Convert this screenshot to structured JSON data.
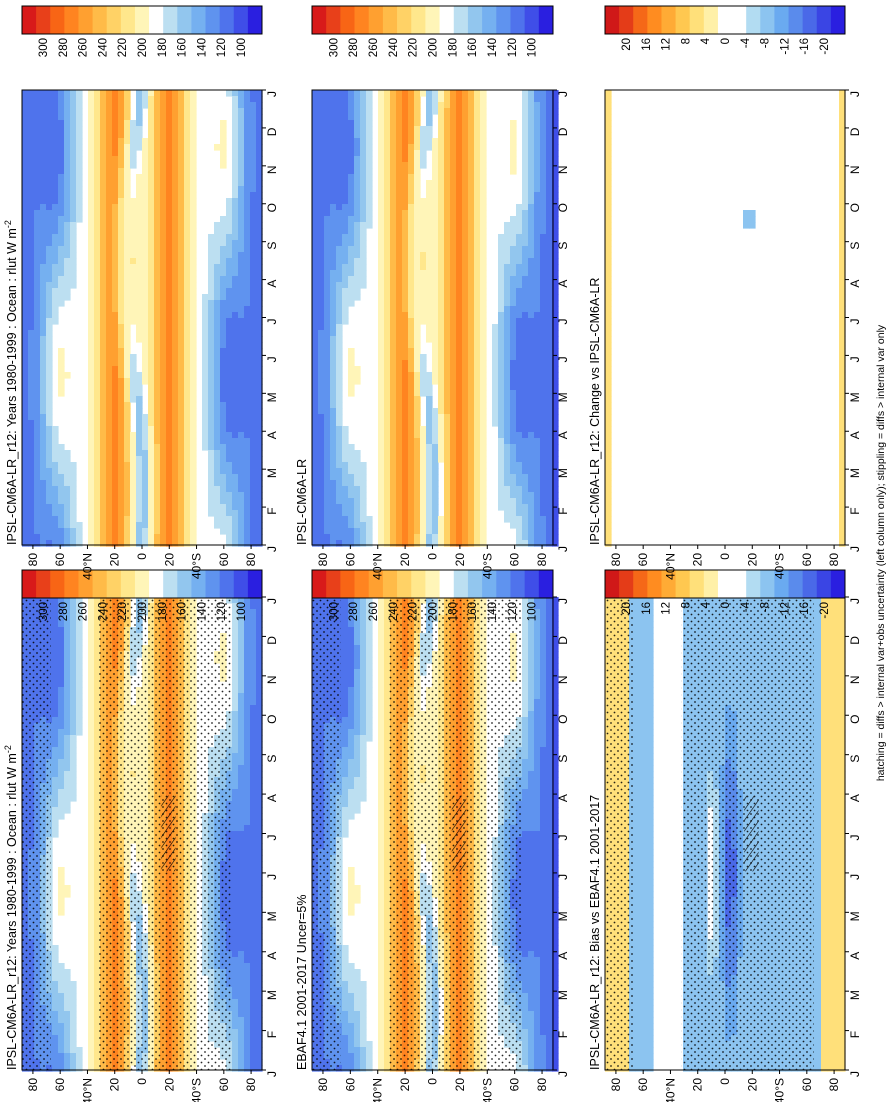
{
  "figure": {
    "footnote": "hatching = diffs > internal var+obs uncertainty (left column only); stippling = diffs > internal var only",
    "colors": {
      "abs_palette": [
        "#2a1fe0",
        "#3f4ee8",
        "#4f73ec",
        "#5f93ef",
        "#75b0f0",
        "#92c6ee",
        "#bcdff1",
        "#ffffff",
        "#fff5b8",
        "#ffe78c",
        "#ffd266",
        "#ffbb48",
        "#ffa030",
        "#ff8420",
        "#f86515",
        "#e8401a",
        "#d81a1a"
      ],
      "diff_palette": [
        "#2a1fe0",
        "#3a45e4",
        "#4a69e8",
        "#5a8bec",
        "#6aaaf0",
        "#8cc4f0",
        "#b2dcf2",
        "#ffffff",
        "#ffffff",
        "#fff0a8",
        "#ffe07a",
        "#ffc850",
        "#ffab35",
        "#ff8c20",
        "#f56818",
        "#e43c18",
        "#d01818"
      ]
    }
  },
  "panels": {
    "model_left": {
      "title": "IPSL-CM6A-LR_r12: Years 1980-1999 : Ocean : rlut W m",
      "sup": "-2",
      "kind": "abs",
      "hatch": true,
      "stipple": "dense",
      "colorbar_ticks": [
        "300",
        "280",
        "260",
        "240",
        "220",
        "200",
        "180",
        "160",
        "140",
        "120",
        "100"
      ]
    },
    "model_right": {
      "title": "IPSL-CM6A-LR_r12: Years 1980-1999 : Ocean : rlut W m",
      "sup": "-2",
      "kind": "abs",
      "hatch": false,
      "stipple": "sparse",
      "colorbar_ticks": [
        "300",
        "280",
        "260",
        "240",
        "220",
        "200",
        "180",
        "160",
        "140",
        "120",
        "100"
      ]
    },
    "obs_left": {
      "title": "EBAF4.1 2001-2017 Uncer=5%",
      "sup": "",
      "kind": "abs",
      "hatch": true,
      "stipple": "dense",
      "colorbar_ticks": [
        "300",
        "280",
        "260",
        "240",
        "220",
        "200",
        "180",
        "160",
        "140",
        "120",
        "100"
      ]
    },
    "obs_right": {
      "title": "IPSL-CM6A-LR",
      "sup": "",
      "kind": "abs",
      "hatch": false,
      "stipple": "sparse",
      "colorbar_ticks": [
        "300",
        "280",
        "260",
        "240",
        "220",
        "200",
        "180",
        "160",
        "140",
        "120",
        "100"
      ]
    },
    "bias_left": {
      "title": "IPSL-CM6A-LR_r12: Bias vs EBAF4.1 2001-2017",
      "sup": "",
      "kind": "bias",
      "hatch": true,
      "stipple": "dense",
      "colorbar_ticks": [
        "20",
        "16",
        "12",
        "8",
        "4",
        "0",
        "-4",
        "-8",
        "-12",
        "-16",
        "-20"
      ]
    },
    "change_right": {
      "title": "IPSL-CM6A-LR_r12: Change vs IPSL-CM6A-LR",
      "sup": "",
      "kind": "change",
      "hatch": false,
      "stipple": "sparse",
      "colorbar_ticks": [
        "20",
        "16",
        "12",
        "8",
        "4",
        "0",
        "-4",
        "-8",
        "-12",
        "-16",
        "-20"
      ]
    }
  },
  "chart_data": [
    {
      "type": "heatmap",
      "title": "IPSL-CM6A-LR_r12: Years 1980-1999 : Ocean : rlut W m-2",
      "x": [
        "J",
        "F",
        "M",
        "A",
        "M",
        "J",
        "J",
        "A",
        "S",
        "O",
        "N",
        "D",
        "J"
      ],
      "y": [
        "80",
        "60",
        "40°N",
        "20",
        "0",
        "20",
        "40°S",
        "60",
        "80"
      ],
      "xlabel": "",
      "ylabel": "",
      "colorbar_range": [
        100,
        300
      ],
      "hatching": true,
      "stippling": true
    },
    {
      "type": "heatmap",
      "title": "IPSL-CM6A-LR_r12: Years 1980-1999 : Ocean : rlut W m-2",
      "x": [
        "J",
        "F",
        "M",
        "A",
        "M",
        "J",
        "J",
        "A",
        "S",
        "O",
        "N",
        "D",
        "J"
      ],
      "y": [
        "80",
        "60",
        "40°N",
        "20",
        "0",
        "20",
        "40°S",
        "60",
        "80"
      ],
      "xlabel": "",
      "ylabel": "",
      "colorbar_range": [
        100,
        300
      ],
      "hatching": false,
      "stippling": true
    },
    {
      "type": "heatmap",
      "title": "EBAF4.1 2001-2017 Uncer=5%",
      "x": [
        "J",
        "F",
        "M",
        "A",
        "M",
        "J",
        "J",
        "A",
        "S",
        "O",
        "N",
        "D",
        "J"
      ],
      "y": [
        "80",
        "60",
        "40°N",
        "20",
        "0",
        "20",
        "40°S",
        "60",
        "80"
      ],
      "xlabel": "",
      "ylabel": "",
      "colorbar_range": [
        100,
        300
      ],
      "hatching": true,
      "stippling": true
    },
    {
      "type": "heatmap",
      "title": "IPSL-CM6A-LR",
      "x": [
        "J",
        "F",
        "M",
        "A",
        "M",
        "J",
        "J",
        "A",
        "S",
        "O",
        "N",
        "D",
        "J"
      ],
      "y": [
        "80",
        "60",
        "40°N",
        "20",
        "0",
        "20",
        "40°S",
        "60",
        "80"
      ],
      "xlabel": "",
      "ylabel": "",
      "colorbar_range": [
        100,
        300
      ],
      "hatching": false,
      "stippling": true
    },
    {
      "type": "heatmap",
      "title": "IPSL-CM6A-LR_r12: Bias vs EBAF4.1 2001-2017",
      "x": [
        "J",
        "F",
        "M",
        "A",
        "M",
        "J",
        "J",
        "A",
        "S",
        "O",
        "N",
        "D",
        "J"
      ],
      "y": [
        "80",
        "60",
        "40°N",
        "20",
        "0",
        "20",
        "40°S",
        "60",
        "80"
      ],
      "xlabel": "",
      "ylabel": "",
      "colorbar_range": [
        -20,
        20
      ],
      "hatching": true,
      "stippling": true
    },
    {
      "type": "heatmap",
      "title": "IPSL-CM6A-LR_r12: Change vs IPSL-CM6A-LR",
      "x": [
        "J",
        "F",
        "M",
        "A",
        "M",
        "J",
        "J",
        "A",
        "S",
        "O",
        "N",
        "D",
        "J"
      ],
      "y": [
        "80",
        "60",
        "40°N",
        "20",
        "0",
        "20",
        "40°S",
        "60",
        "80"
      ],
      "xlabel": "",
      "ylabel": "",
      "colorbar_range": [
        -20,
        20
      ],
      "hatching": false,
      "stippling": true
    }
  ]
}
